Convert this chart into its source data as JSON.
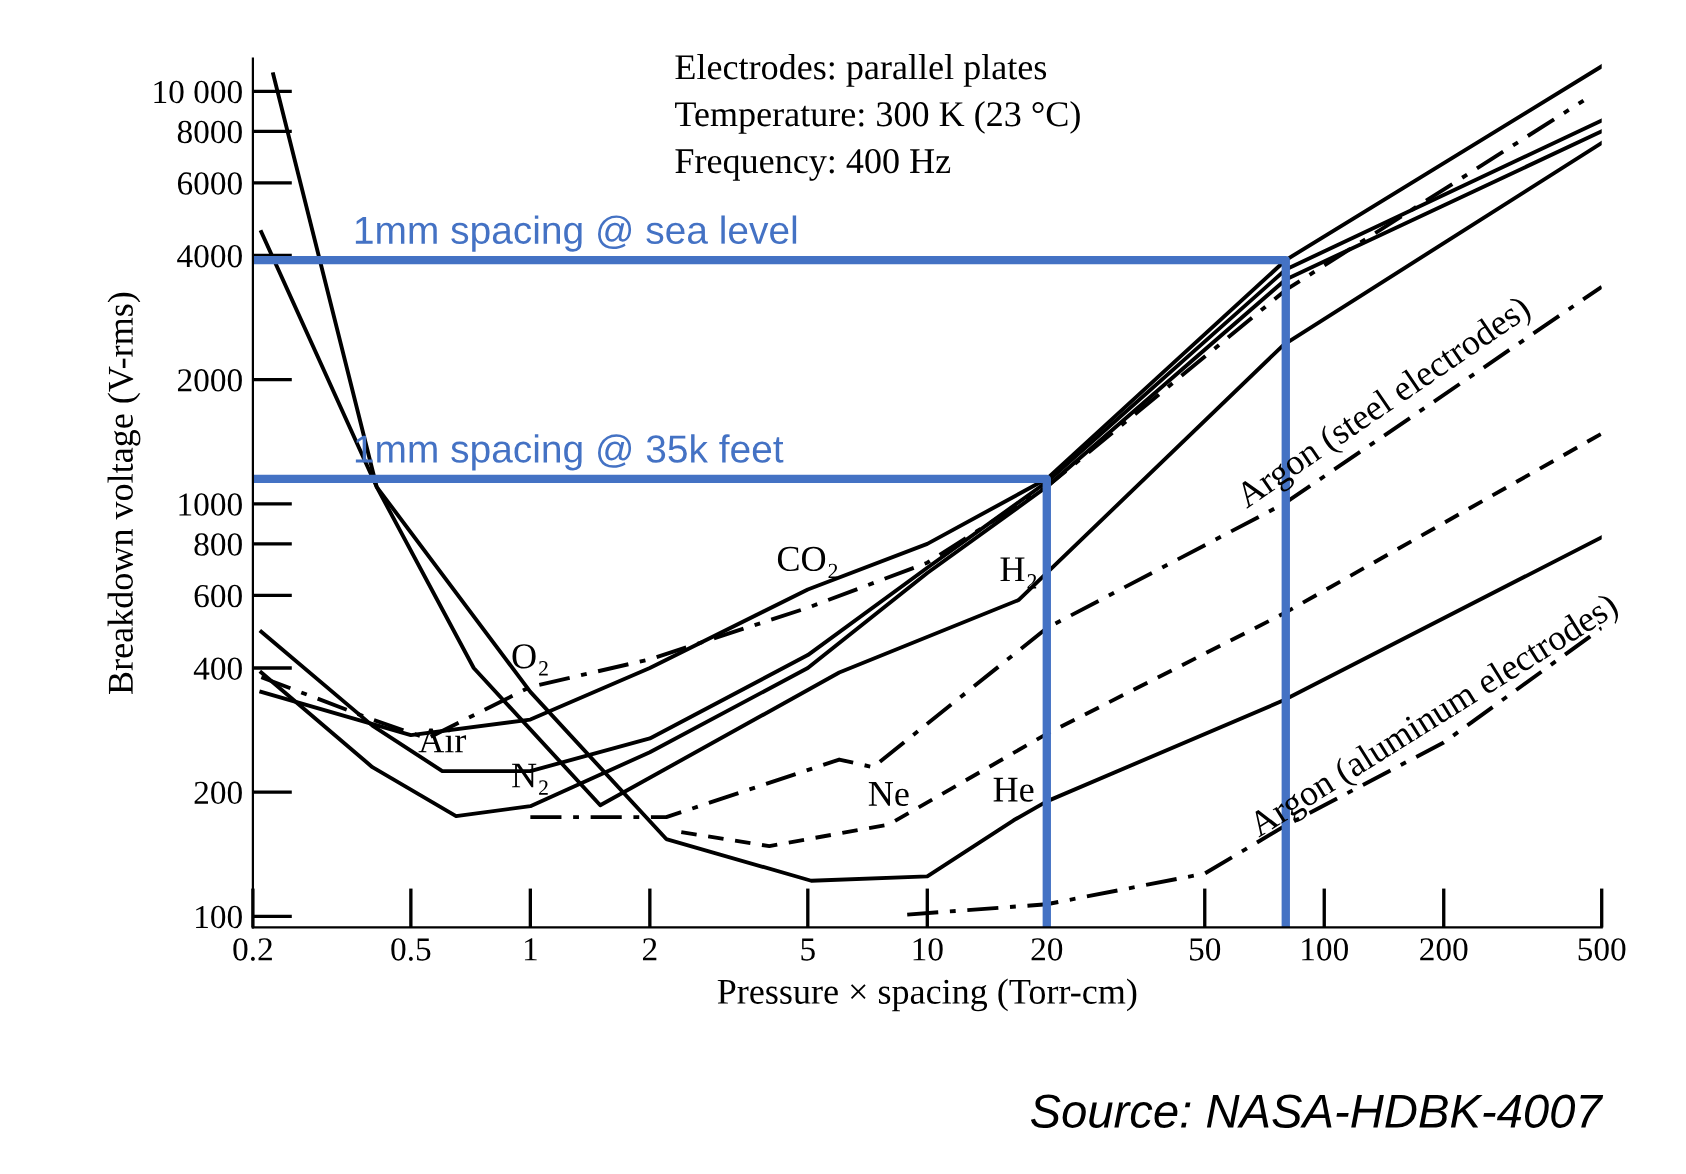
{
  "chart_data": {
    "type": "line",
    "xlabel": "Pressure × spacing (Torr-cm)",
    "ylabel": "Breakdown voltage (V-rms)",
    "log": "xy",
    "grid": false,
    "xlim": [
      0.2,
      500
    ],
    "ylim": [
      94,
      12000
    ],
    "xticks": [
      0.2,
      0.5,
      1,
      2,
      5,
      10,
      20,
      50,
      100,
      200,
      500
    ],
    "yticks": [
      100,
      200,
      400,
      600,
      800,
      1000,
      2000,
      4000,
      6000,
      8000,
      {
        "value": 10000,
        "label": "10 000"
      }
    ],
    "series": [
      {
        "color": "#000000",
        "line_style": "solid",
        "x": [
          0.21,
          0.5,
          1,
          2,
          5,
          10,
          20,
          80,
          500
        ],
        "values": [
          350,
          275,
          300,
          400,
          620,
          800,
          1150,
          3900,
          11500
        ]
      },
      {
        "color": "#000000",
        "line_style": "dashdot",
        "x": [
          0.21,
          0.4,
          0.55,
          1,
          2,
          5,
          10,
          20,
          80,
          450
        ],
        "values": [
          380,
          300,
          270,
          360,
          420,
          560,
          720,
          1100,
          3300,
          9500
        ]
      },
      {
        "color": "#000000",
        "line_style": "solid",
        "x": [
          0.21,
          0.4,
          0.6,
          1,
          2,
          5,
          10,
          20,
          80,
          500
        ],
        "values": [
          490,
          290,
          225,
          225,
          270,
          430,
          700,
          1130,
          3700,
          8500
        ]
      },
      {
        "color": "#000000",
        "line_style": "solid",
        "x": [
          0.21,
          0.4,
          0.65,
          1,
          2,
          5,
          10,
          20,
          80,
          500
        ],
        "values": [
          390,
          230,
          175,
          185,
          250,
          400,
          680,
          1100,
          3500,
          8000
        ]
      },
      {
        "color": "#000000",
        "line_style": "solid",
        "x": [
          0.21,
          0.41,
          0.72,
          1.5,
          6,
          17,
          79,
          500
        ],
        "values": [
          4560,
          1100,
          400,
          186,
          390,
          585,
          2430,
          7500
        ]
      },
      {
        "color": "#000000",
        "line_style": "solid",
        "x": [
          0.225,
          0.41,
          1,
          2.2,
          5.1,
          10,
          16.5,
          20,
          79,
          500
        ],
        "values": [
          11000,
          1100,
          350,
          154,
          122,
          125,
          171,
          190,
          334,
          830
        ]
      },
      {
        "color": "#000000",
        "line_style": "dashed",
        "x": [
          2.4,
          4,
          8,
          20,
          79,
          500
        ],
        "values": [
          160,
          148,
          167,
          277,
          542,
          1480
        ]
      },
      {
        "color": "#000000",
        "line_style": "dashdot",
        "x": [
          1,
          2.2,
          6,
          7.3,
          20,
          79,
          150,
          500
        ],
        "values": [
          174,
          174,
          240,
          230,
          500,
          1000,
          1520,
          3360
        ]
      },
      {
        "color": "#000000",
        "line_style": "dashdot",
        "x": [
          8.9,
          20,
          50,
          79,
          200,
          500
        ],
        "values": [
          101,
          107,
          127,
          165,
          264,
          500
        ]
      },
      {
        "name": "1mm spacing @ sea level",
        "color": "#4472c4",
        "line_style": "solid",
        "x": [
          0.2,
          80,
          80
        ],
        "values": [
          3900,
          3900,
          94
        ]
      },
      {
        "name": "1mm spacing @ 35k feet",
        "color": "#4472c4",
        "line_style": "solid",
        "x": [
          0.2,
          20,
          20
        ],
        "values": [
          1150,
          1150,
          94
        ]
      }
    ],
    "annotations": [
      {
        "text": "CO₂",
        "x": 5,
        "y": 620
      },
      {
        "text": "O₂",
        "x": 1,
        "y": 360
      },
      {
        "text": "Air",
        "x": 0.6,
        "y": 225
      },
      {
        "text": "N₂",
        "x": 1,
        "y": 185
      },
      {
        "text": "H₂",
        "x": 17,
        "y": 585
      },
      {
        "text": "Ne",
        "x": 8,
        "y": 167
      },
      {
        "text": "He",
        "x": 16.5,
        "y": 171
      },
      {
        "text": "Argon (steel electrodes)",
        "x": 150,
        "y": 1520
      },
      {
        "text": "Argon (aluminum electrodes)",
        "x": 200,
        "y": 264
      },
      "Electrodes: parallel plates",
      "Temperature: 300 K (23 °C)",
      "Frequency: 400 Hz",
      "Source: NASA-HDBK-4007"
    ]
  }
}
